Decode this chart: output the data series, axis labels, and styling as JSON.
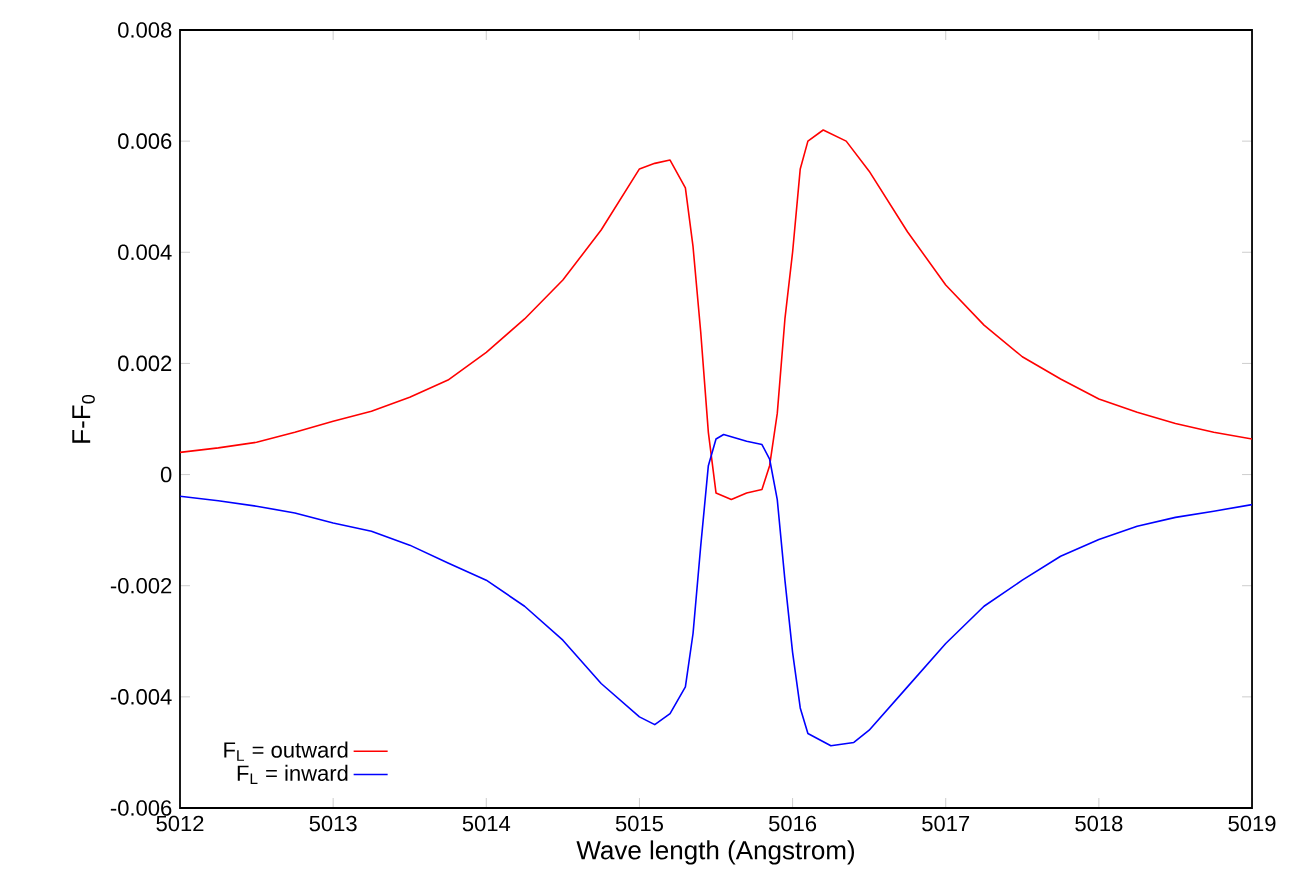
{
  "chart_data": {
    "type": "line",
    "xlabel": "Wave length (Angstrom)",
    "ylabel": "F-F$_{0}$",
    "xlim": [
      5012,
      5019
    ],
    "ylim": [
      -0.006,
      0.008
    ],
    "xticks": [
      5012,
      5013,
      5014,
      5015,
      5016,
      5017,
      5018,
      5019
    ],
    "yticks": [
      -0.006,
      -0.004,
      -0.002,
      0,
      0.002,
      0.004,
      0.006,
      0.008
    ],
    "grid": false,
    "legend": "bottom left",
    "marker": "none",
    "line_style": "solid",
    "series": [
      {
        "name": "F$_{L}$ = outward",
        "color": "#ff0000",
        "x": [
          5012.0,
          5012.25,
          5012.5,
          5012.75,
          5013.0,
          5013.25,
          5013.5,
          5013.75,
          5014.0,
          5014.25,
          5014.5,
          5014.75,
          5015.0,
          5015.1,
          5015.2,
          5015.3,
          5015.35,
          5015.4,
          5015.45,
          5015.5,
          5015.6,
          5015.7,
          5015.8,
          5015.85,
          5015.9,
          5015.95,
          5016.0,
          5016.05,
          5016.1,
          5016.2,
          5016.35,
          5016.5,
          5016.75,
          5017.0,
          5017.25,
          5017.5,
          5017.75,
          5018.0,
          5018.25,
          5018.5,
          5018.75,
          5019.0
        ],
        "values": [
          0.0004,
          0.00048,
          0.00058,
          0.00076,
          0.00096,
          0.00114,
          0.00139,
          0.0017,
          0.0022,
          0.0028,
          0.0035,
          0.0044,
          0.0055,
          0.0056,
          0.00566,
          0.00516,
          0.0041,
          0.00257,
          0.00076,
          -0.00033,
          -0.00045,
          -0.00033,
          -0.00027,
          0.00016,
          0.0011,
          0.0028,
          0.004,
          0.0055,
          0.006,
          0.0062,
          0.006,
          0.00546,
          0.00437,
          0.00341,
          0.00269,
          0.00212,
          0.00172,
          0.00136,
          0.00112,
          0.00092,
          0.00076,
          0.00064
        ]
      },
      {
        "name": "F$_{L}$ = inward",
        "color": "#0000ff",
        "x": [
          5012.0,
          5012.25,
          5012.5,
          5012.75,
          5013.0,
          5013.25,
          5013.5,
          5013.75,
          5014.0,
          5014.25,
          5014.5,
          5014.75,
          5015.0,
          5015.1,
          5015.2,
          5015.3,
          5015.35,
          5015.4,
          5015.45,
          5015.5,
          5015.55,
          5015.7,
          5015.8,
          5015.85,
          5015.9,
          5015.95,
          5016.0,
          5016.05,
          5016.1,
          5016.25,
          5016.4,
          5016.5,
          5016.75,
          5017.0,
          5017.25,
          5017.5,
          5017.75,
          5018.0,
          5018.25,
          5018.5,
          5018.75,
          5019.0
        ],
        "values": [
          -0.00039,
          -0.00047,
          -0.00057,
          -0.00069,
          -0.00087,
          -0.00102,
          -0.00127,
          -0.00159,
          -0.0019,
          -0.00237,
          -0.00298,
          -0.00376,
          -0.00436,
          -0.0045,
          -0.0043,
          -0.00382,
          -0.00286,
          -0.00129,
          0.00016,
          0.00064,
          0.00072,
          0.0006,
          0.00054,
          0.00028,
          -0.00045,
          -0.0019,
          -0.0032,
          -0.0042,
          -0.00466,
          -0.00488,
          -0.00482,
          -0.0046,
          -0.00382,
          -0.00304,
          -0.00237,
          -0.0019,
          -0.00147,
          -0.00117,
          -0.00093,
          -0.00077,
          -0.00066,
          -0.00054
        ]
      }
    ]
  }
}
